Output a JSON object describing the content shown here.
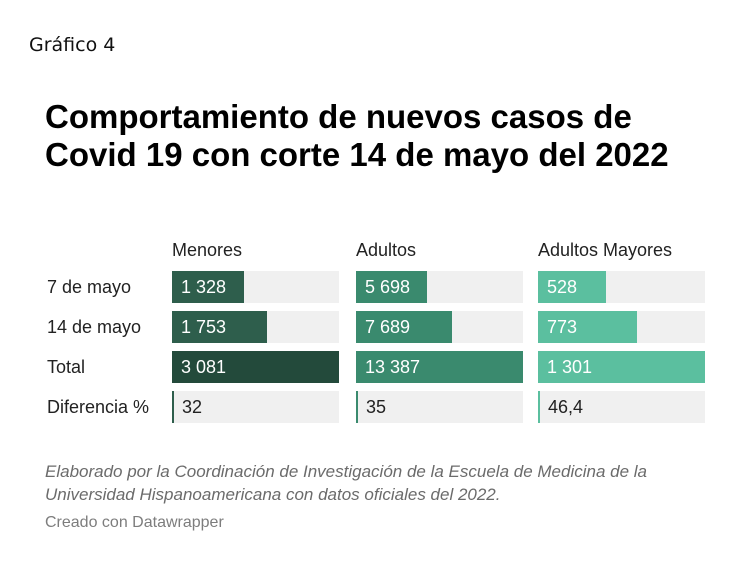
{
  "header": {
    "label": "Gráfico 4",
    "title": "Comportamiento de nuevos casos de Covid 19 con corte 14 de mayo del 2022"
  },
  "chart_data": {
    "type": "table",
    "title": "Comportamiento de nuevos casos de Covid 19 con corte 14 de mayo del 2022",
    "columns": [
      {
        "name": "Menores",
        "color": "#1e4d3c",
        "max": 3081
      },
      {
        "name": "Adultos",
        "color": "#3a8a6e",
        "max": 13387
      },
      {
        "name": "Adultos Mayores",
        "color": "#5bbf9f",
        "max": 1301
      }
    ],
    "rows": [
      {
        "label": "7 de mayo",
        "values": [
          1328,
          5698,
          528
        ],
        "display": [
          "1 328",
          "5 698",
          "528"
        ],
        "color": [
          "#2e5e4c",
          "#3a8a6e",
          "#5bbf9f"
        ]
      },
      {
        "label": "14 de mayo",
        "values": [
          1753,
          7689,
          773
        ],
        "display": [
          "1 753",
          "7 689",
          "773"
        ],
        "color": [
          "#2e5e4c",
          "#3a8a6e",
          "#5bbf9f"
        ]
      },
      {
        "label": "Total",
        "values": [
          3081,
          13387,
          1301
        ],
        "display": [
          "3 081",
          "13 387",
          "1 301"
        ],
        "color": [
          "#234a3b",
          "#3a8a6e",
          "#5bbf9f"
        ]
      },
      {
        "label": "Diferencia %",
        "values": [
          32,
          35,
          46.4
        ],
        "display": [
          "32",
          "35",
          "46,4"
        ],
        "color": [
          "#2e5e4c",
          "#3a8a6e",
          "#5bbf9f"
        ],
        "thin": true
      }
    ]
  },
  "footer": {
    "note": "Elaborado por la Coordinación de Investigación de la Escuela de Medicina de la Universidad Hispanoamericana con datos oficiales del 2022.",
    "credit": "Creado con Datawrapper"
  }
}
